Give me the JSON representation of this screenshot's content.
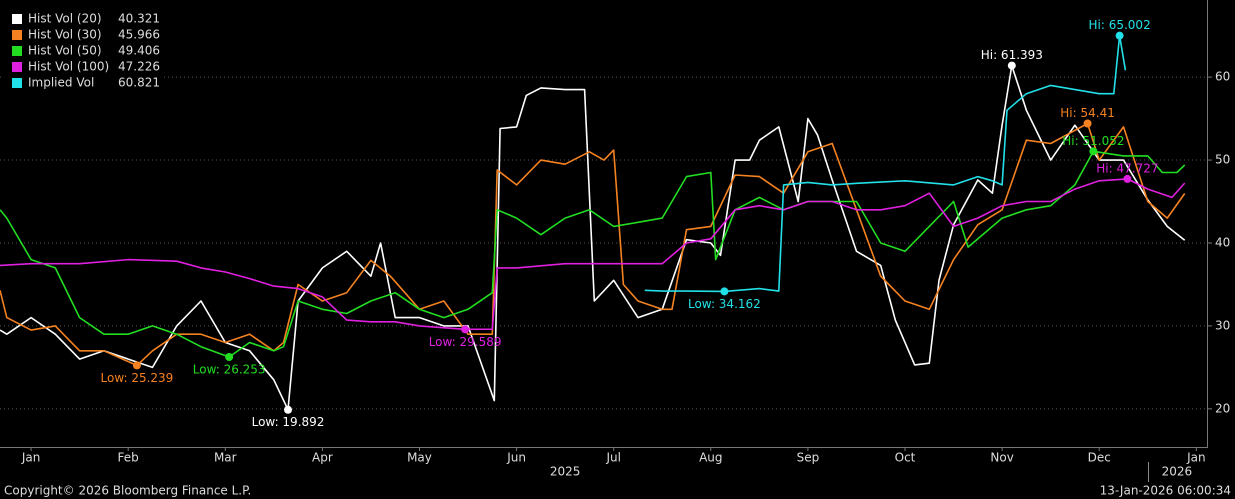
{
  "chart_data": {
    "type": "line",
    "xlim": [
      0.18,
      12.61
    ],
    "ylim": [
      15.4,
      69.3
    ],
    "yticks": [
      20,
      30,
      40,
      50,
      60
    ],
    "grid": true,
    "legend": "top-left",
    "xticks": [
      {
        "value": 0.5,
        "label": "Jan"
      },
      {
        "value": 1.5,
        "label": "Feb"
      },
      {
        "value": 2.5,
        "label": "Mar"
      },
      {
        "value": 3.5,
        "label": "Apr"
      },
      {
        "value": 4.5,
        "label": "May"
      },
      {
        "value": 5.5,
        "label": "Jun"
      },
      {
        "value": 6.5,
        "label": "Jul"
      },
      {
        "value": 7.5,
        "label": "Aug"
      },
      {
        "value": 8.5,
        "label": "Sep"
      },
      {
        "value": 9.5,
        "label": "Oct"
      },
      {
        "value": 10.5,
        "label": "Nov"
      },
      {
        "value": 11.5,
        "label": "Dec"
      },
      {
        "value": 12.5,
        "label": "Jan"
      }
    ],
    "year_labels": [
      {
        "value": 6,
        "label": "2025"
      },
      {
        "value": 12.3,
        "label": "2026"
      }
    ],
    "footer_left": "Copyright© 2026 Bloomberg Finance L.P.",
    "footer_right": "13-Jan-2026 06:00:34",
    "series": [
      {
        "name": "Hist Vol (20)",
        "color": "#ffffff",
        "x": [
          0.18,
          0.25,
          0.5,
          0.75,
          1,
          1.25,
          1.5,
          1.75,
          2,
          2.25,
          2.5,
          2.75,
          3,
          3.146,
          3.25,
          3.5,
          3.75,
          4,
          4.1,
          4.25,
          4.5,
          4.75,
          5,
          5.15,
          5.27,
          5.33,
          5.5,
          5.6,
          5.75,
          6,
          6.2,
          6.3,
          6.5,
          6.75,
          7,
          7.25,
          7.5,
          7.6,
          7.75,
          7.9,
          8,
          8.2,
          8.4,
          8.5,
          8.6,
          8.75,
          9,
          9.25,
          9.4,
          9.6,
          9.75,
          9.85,
          10,
          10.25,
          10.4,
          10.5,
          10.6,
          10.75,
          11,
          11.25,
          11.5,
          11.75,
          12,
          12.2,
          12.38
        ],
        "values": [
          29.5,
          29,
          31,
          29,
          26,
          27,
          26,
          25,
          30,
          33,
          28,
          27,
          23.5,
          19.892,
          33,
          37,
          39,
          36,
          40,
          31,
          31,
          30,
          30,
          25,
          21,
          53.8,
          54,
          57.8,
          58.7,
          58.5,
          58.5,
          33,
          35.5,
          31,
          32,
          40.4,
          40,
          38.5,
          50,
          50,
          52.4,
          54,
          45,
          55,
          53,
          47.6,
          39,
          37.3,
          30.7,
          25.3,
          25.5,
          35.5,
          42.2,
          47.6,
          46,
          54.2,
          61.393,
          56,
          50,
          54.2,
          50,
          50,
          45.2,
          42,
          40.321
        ],
        "annotations": [
          {
            "label": "Low: 19.892",
            "x": 3.146,
            "value": 19.892,
            "kind": "low"
          },
          {
            "label": "Hi: 61.393",
            "x": 10.6,
            "value": 61.393,
            "kind": "high"
          }
        ]
      },
      {
        "name": "Hist Vol (30)",
        "color": "#f58220",
        "x": [
          0.18,
          0.25,
          0.5,
          0.75,
          1,
          1.25,
          1.59,
          1.75,
          2,
          2.25,
          2.5,
          2.75,
          3,
          3.1,
          3.25,
          3.5,
          3.75,
          4,
          4.2,
          4.5,
          4.75,
          5,
          5.25,
          5.3,
          5.5,
          5.75,
          6,
          6.25,
          6.4,
          6.5,
          6.6,
          6.75,
          7,
          7.1,
          7.25,
          7.5,
          7.75,
          8,
          8.25,
          8.5,
          8.75,
          9,
          9.25,
          9.5,
          9.75,
          10,
          10.25,
          10.5,
          10.75,
          11,
          11.38,
          11.5,
          11.75,
          12,
          12.2,
          12.38
        ],
        "values": [
          34.3,
          31,
          29.5,
          30,
          27,
          27,
          25.239,
          27,
          29,
          29,
          28,
          29,
          27,
          28,
          35,
          33,
          34,
          37.9,
          36,
          32,
          33,
          29,
          29,
          48.8,
          47,
          50,
          49.5,
          51,
          50,
          51.2,
          35,
          33,
          32,
          32,
          41.6,
          42,
          48.2,
          48,
          46,
          51,
          52,
          44,
          36,
          33,
          32,
          38,
          42.2,
          44,
          52.4,
          52,
          54.41,
          50,
          54,
          45,
          43,
          45.966
        ],
        "annotations": [
          {
            "label": "Low: 25.239",
            "x": 1.59,
            "value": 25.239,
            "kind": "low"
          },
          {
            "label": "Hi: 54.41",
            "x": 11.38,
            "value": 54.41,
            "kind": "high"
          }
        ]
      },
      {
        "name": "Hist Vol (50)",
        "color": "#22dd22",
        "x": [
          0.18,
          0.25,
          0.5,
          0.75,
          1,
          1.25,
          1.5,
          1.75,
          2,
          2.25,
          2.54,
          2.75,
          3,
          3.1,
          3.25,
          3.5,
          3.75,
          4,
          4.25,
          4.5,
          4.75,
          5,
          5.25,
          5.3,
          5.5,
          5.75,
          6,
          6.25,
          6.5,
          6.75,
          7,
          7.25,
          7.5,
          7.55,
          7.75,
          8,
          8.25,
          8.5,
          8.75,
          9,
          9.25,
          9.5,
          9.75,
          10,
          10.15,
          10.5,
          10.75,
          11,
          11.25,
          11.44,
          11.75,
          12,
          12.15,
          12.3,
          12.38
        ],
        "values": [
          44,
          43,
          38,
          37,
          31,
          29,
          29,
          30,
          29,
          27.5,
          26.253,
          28,
          27,
          27.5,
          33,
          32,
          31.5,
          33,
          34,
          32,
          31,
          32,
          34,
          44,
          43,
          41,
          43,
          44,
          42,
          42.5,
          43,
          48,
          48.5,
          38,
          44,
          45.5,
          44,
          45,
          45,
          45,
          40,
          39,
          42,
          45,
          39.5,
          43,
          44,
          44.5,
          47,
          51.052,
          50.5,
          50.5,
          48.5,
          48.5,
          49.406
        ],
        "annotations": [
          {
            "label": "Low: 26.253",
            "x": 2.54,
            "value": 26.253,
            "kind": "low"
          },
          {
            "label": "Hi: 51.052",
            "x": 11.44,
            "value": 51.052,
            "kind": "high"
          }
        ]
      },
      {
        "name": "Hist Vol (100)",
        "color": "#e020e0",
        "x": [
          0.18,
          0.5,
          1,
          1.5,
          2,
          2.25,
          2.5,
          2.75,
          3,
          3.25,
          3.5,
          3.75,
          4,
          4.25,
          4.5,
          4.97,
          5.25,
          5.3,
          5.5,
          6,
          6.5,
          7,
          7.25,
          7.5,
          7.75,
          8,
          8.25,
          8.5,
          8.75,
          9,
          9.25,
          9.5,
          9.75,
          10,
          10.25,
          10.5,
          10.75,
          11,
          11.25,
          11.5,
          11.79,
          12,
          12.25,
          12.38
        ],
        "values": [
          37.3,
          37.5,
          37.5,
          38,
          37.8,
          37,
          36.5,
          35.7,
          34.8,
          34.5,
          33.5,
          30.7,
          30.5,
          30.5,
          30,
          29.589,
          29.6,
          37,
          37,
          37.5,
          37.5,
          37.5,
          40,
          40.5,
          44,
          44.5,
          44,
          45,
          45,
          44,
          44,
          44.5,
          46,
          42,
          43,
          44.5,
          45,
          45,
          46.5,
          47.5,
          47.727,
          46.5,
          45.5,
          47.226
        ],
        "annotations": [
          {
            "label": "Low: 29.589",
            "x": 4.97,
            "value": 29.589,
            "kind": "low"
          },
          {
            "label": "Hi: 47.727",
            "x": 11.79,
            "value": 47.727,
            "kind": "high"
          }
        ]
      },
      {
        "name": "Implied Vol",
        "color": "#22e0e8",
        "x": [
          6.82,
          7,
          7.25,
          7.64,
          8,
          8.2,
          8.25,
          8.5,
          8.75,
          9,
          9.5,
          10,
          10.25,
          10.4,
          10.5,
          10.55,
          10.75,
          11,
          11.25,
          11.5,
          11.65,
          11.71,
          11.77
        ],
        "values": [
          34.3,
          34.2,
          34.2,
          34.162,
          34.5,
          34.2,
          47,
          47.3,
          47,
          47.2,
          47.5,
          47,
          48,
          47.5,
          47,
          56,
          58,
          59,
          58.5,
          58,
          58,
          65.002,
          60.821
        ],
        "annotations": [
          {
            "label": "Low: 34.162",
            "x": 7.64,
            "value": 34.162,
            "kind": "low"
          },
          {
            "label": "Hi: 65.002",
            "x": 11.71,
            "value": 65.002,
            "kind": "high"
          }
        ]
      }
    ]
  }
}
